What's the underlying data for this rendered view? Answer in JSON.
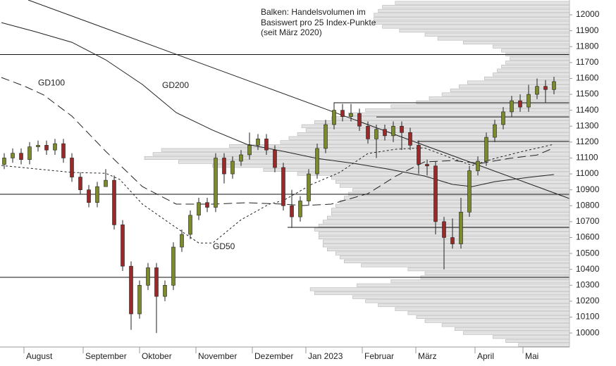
{
  "chart_data": {
    "type": "candlestick",
    "annotation": [
      "Balken: Handelsvolumen im",
      "Basiswert pro 25 Index-Punkte",
      "(seit März 2020)"
    ],
    "xlim": [
      -0.5,
      201.5
    ],
    "ylim": [
      9912,
      12093
    ],
    "yticks": [
      10000,
      10100,
      10200,
      10300,
      10400,
      10500,
      10600,
      10700,
      10800,
      10900,
      11000,
      11100,
      11200,
      11300,
      11400,
      11500,
      11600,
      11700,
      11800,
      11900,
      12000
    ],
    "xticks": [
      {
        "value": 8,
        "label": "August"
      },
      {
        "value": 29,
        "label": "September"
      },
      {
        "value": 49,
        "label": "Oktober"
      },
      {
        "value": 69,
        "label": "November"
      },
      {
        "value": 89,
        "label": "Dezember"
      },
      {
        "value": 108,
        "label": "Jan 2023"
      },
      {
        "value": 128,
        "label": "Februar"
      },
      {
        "value": 147,
        "label": "März"
      },
      {
        "value": 168,
        "label": "April"
      },
      {
        "value": 185,
        "label": "Mai"
      }
    ],
    "up_color": "#7b8a2a",
    "down_color": "#9a2a2a",
    "x": [
      1,
      4,
      7,
      10,
      13,
      16,
      19,
      22,
      25,
      28,
      31,
      34,
      37,
      40,
      43,
      46,
      49,
      52,
      55,
      58,
      61,
      64,
      67,
      70,
      73,
      76,
      79,
      82,
      85,
      88,
      91,
      94,
      97,
      100,
      103,
      106,
      109,
      112,
      115,
      118,
      121,
      124,
      127,
      130,
      133,
      136,
      139,
      142,
      145,
      148,
      151,
      154,
      157,
      160,
      163,
      166,
      169,
      172,
      175,
      178,
      181,
      184,
      187,
      190,
      193,
      196
    ],
    "open": [
      11060,
      11100,
      11130,
      11090,
      11170,
      11180,
      11150,
      11190,
      11100,
      10980,
      10900,
      10820,
      10920,
      10960,
      10680,
      10420,
      10120,
      10300,
      10410,
      10230,
      10300,
      10540,
      10620,
      10740,
      10820,
      10790,
      11100,
      11000,
      11080,
      11120,
      11180,
      11220,
      11150,
      11040,
      10800,
      10730,
      10830,
      11000,
      11160,
      11310,
      11400,
      11360,
      11380,
      11300,
      11220,
      11280,
      11240,
      11300,
      11260,
      11180,
      11060,
      11050,
      10700,
      10600,
      10560,
      10760,
      11020,
      11080,
      11230,
      11310,
      11390,
      11460,
      11420,
      11500,
      11550,
      11530
    ],
    "high": [
      11130,
      11160,
      11160,
      11200,
      11210,
      11210,
      11220,
      11220,
      11130,
      11010,
      10930,
      10950,
      11030,
      10990,
      10710,
      10450,
      10330,
      10440,
      10440,
      10330,
      10570,
      10650,
      10770,
      10850,
      10850,
      11130,
      11130,
      11110,
      11150,
      11260,
      11250,
      11250,
      11180,
      11070,
      10900,
      10860,
      11030,
      11190,
      11340,
      11450,
      11440,
      11440,
      11410,
      11330,
      11310,
      11310,
      11330,
      11330,
      11290,
      11210,
      11090,
      11080,
      10730,
      10720,
      10850,
      11050,
      11110,
      11260,
      11340,
      11420,
      11490,
      11500,
      11560,
      11600,
      11590,
      11610
    ],
    "low": [
      11030,
      11070,
      11060,
      11060,
      11140,
      11120,
      11120,
      11070,
      10950,
      10870,
      10790,
      10790,
      10930,
      10650,
      10390,
      10020,
      10090,
      10270,
      10000,
      10200,
      10270,
      10510,
      10590,
      10710,
      10760,
      10760,
      10940,
      10970,
      11050,
      11090,
      11150,
      11120,
      11010,
      10770,
      10660,
      10700,
      10800,
      10970,
      11130,
      11280,
      11330,
      11330,
      11270,
      11190,
      11100,
      11210,
      11200,
      11150,
      11150,
      11000,
      10990,
      10620,
      10400,
      10530,
      10530,
      10730,
      10990,
      11050,
      11200,
      11280,
      11360,
      11390,
      11390,
      11470,
      11450,
      11500
    ],
    "close": [
      11100,
      11130,
      11090,
      11170,
      11180,
      11150,
      11190,
      11100,
      10980,
      10900,
      10820,
      10920,
      10960,
      10680,
      10420,
      10120,
      10300,
      10410,
      10230,
      10300,
      10540,
      10620,
      10740,
      10820,
      10790,
      11100,
      11000,
      11080,
      11120,
      11180,
      11220,
      11150,
      11040,
      10800,
      10730,
      10830,
      11000,
      11160,
      11310,
      11400,
      11360,
      11380,
      11300,
      11220,
      11280,
      11240,
      11300,
      11260,
      11180,
      11060,
      11050,
      10700,
      10600,
      10560,
      10760,
      11020,
      11080,
      11230,
      11310,
      11390,
      11460,
      11420,
      11500,
      11550,
      11530,
      11580
    ],
    "moving_averages": [
      {
        "name": "GD50",
        "color": "#222222",
        "dash": "3,3",
        "label_at": [
          75,
          10540
        ],
        "x": [
          0,
          25,
          37,
          42,
          50,
          60,
          70,
          75,
          85,
          95,
          100,
          110,
          120,
          130,
          140,
          150,
          160,
          167,
          175,
          185,
          196
        ],
        "values": [
          11053,
          11009,
          11004,
          10965,
          10810,
          10686,
          10566,
          10566,
          10712,
          10810,
          10832,
          10934,
          11009,
          11128,
          11155,
          11164,
          11097,
          11053,
          11097,
          11142,
          11186
        ]
      },
      {
        "name": "GD100",
        "color": "#222222",
        "dash": "12,6",
        "label_at": [
          13,
          11570
        ],
        "x": [
          0,
          8,
          15,
          25,
          37,
          50,
          62,
          75,
          87,
          100,
          107,
          117,
          130,
          140,
          150,
          160,
          170,
          180,
          190,
          196
        ],
        "values": [
          11606,
          11553,
          11496,
          11363,
          11142,
          10920,
          10810,
          10810,
          10819,
          10810,
          10801,
          10810,
          10876,
          10987,
          11075,
          11084,
          11066,
          11097,
          11119,
          11164
        ]
      },
      {
        "name": "GD200",
        "color": "#222222",
        "dash": "none",
        "label_at": [
          57,
          11555
        ],
        "x": [
          0,
          12,
          25,
          37,
          50,
          62,
          75,
          87,
          100,
          112,
          125,
          137,
          150,
          160,
          167,
          175,
          187,
          196
        ],
        "values": [
          11951,
          11894,
          11827,
          11717,
          11562,
          11385,
          11274,
          11186,
          11142,
          11097,
          11066,
          11031,
          10987,
          10934,
          10920,
          10951,
          10978,
          10996
        ]
      }
    ],
    "trendline": {
      "x": [
        9.5,
        201.5
      ],
      "values": [
        12093,
        10845
      ]
    },
    "levels": {
      "values": [
        11750,
        11447,
        11358,
        11204,
        10872,
        10664,
        10350
      ],
      "x_start": [
        -0.5,
        118,
        133,
        147.5,
        -0.5,
        101.5,
        -0.5
      ]
    },
    "volume_profile": {
      "color": "#e3e3e3",
      "levels": [
        9925,
        9950,
        9975,
        10000,
        10025,
        10050,
        10075,
        10100,
        10125,
        10150,
        10175,
        10200,
        10225,
        10250,
        10275,
        10300,
        10325,
        10350,
        10375,
        10400,
        10425,
        10450,
        10475,
        10500,
        10525,
        10550,
        10575,
        10600,
        10625,
        10650,
        10675,
        10700,
        10725,
        10750,
        10775,
        10800,
        10825,
        10850,
        10875,
        10900,
        10925,
        10950,
        10975,
        11000,
        11025,
        11050,
        11075,
        11100,
        11125,
        11150,
        11175,
        11200,
        11225,
        11250,
        11275,
        11300,
        11325,
        11350,
        11375,
        11400,
        11425,
        11450,
        11475,
        11500,
        11525,
        11550,
        11575,
        11600,
        11625,
        11650,
        11675,
        11700,
        11725,
        11750,
        11775,
        11800,
        11825,
        11850,
        11875,
        11900,
        11925,
        11950,
        11975,
        12000,
        12025,
        12050,
        12075
      ],
      "values": [
        12,
        15,
        18,
        25,
        27,
        30,
        34,
        36,
        38,
        41,
        45,
        48,
        51,
        60,
        61,
        50,
        42,
        35,
        34,
        38,
        49,
        53,
        54,
        55,
        57,
        58,
        58,
        59,
        59,
        60,
        59,
        58,
        57,
        56,
        56,
        55,
        54,
        53,
        52,
        51,
        54,
        55,
        56,
        64,
        72,
        84,
        92,
        100,
        98,
        96,
        80,
        68,
        66,
        64,
        62,
        63,
        60,
        56,
        52,
        48,
        42,
        36,
        33,
        30,
        28,
        26,
        24,
        20,
        18,
        17,
        16,
        15,
        14,
        15,
        16,
        18,
        25,
        31,
        34,
        40,
        44,
        46,
        46,
        46,
        45,
        44,
        41
      ]
    }
  }
}
